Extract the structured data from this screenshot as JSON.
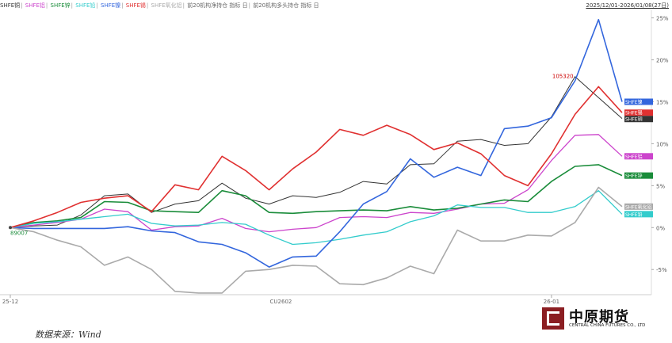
{
  "header": {
    "legend_items": [
      {
        "label": "SHFE铜",
        "color": "#333333"
      },
      {
        "label": "SHFE铝",
        "color": "#cc44cc"
      },
      {
        "label": "SHFE锌",
        "color": "#1a8c3a"
      },
      {
        "label": "SHFE铅",
        "color": "#33cccc"
      },
      {
        "label": "SHFE镍",
        "color": "#3366dd"
      },
      {
        "label": "SHFE锡",
        "color": "#e03030"
      },
      {
        "label": "SHFE氧化铝",
        "color": "#aaaaaa"
      },
      {
        "label": "前20机构净持仓 指标 日",
        "color": "#666666"
      },
      {
        "label": "前20机构多头持仓 指标 日",
        "color": "#666666"
      }
    ],
    "date_range": "2025/12/01-2026/01/08(27日)"
  },
  "footer": {
    "source": "数据来源：Wind",
    "logo_cn": "中原期货",
    "logo_en": "CENTRAL CHINA FUTURES CO., LTD"
  },
  "chart_data": {
    "type": "line",
    "ylim": [
      -8,
      26
    ],
    "y_ticks": [
      "25%",
      "20%",
      "15%",
      "10%",
      "5%",
      "0%",
      "-5%"
    ],
    "y_tick_values": [
      25,
      20,
      15,
      10,
      5,
      0,
      -5
    ],
    "x_labels": [
      "25-12",
      "CU2602",
      "26-01"
    ],
    "x_label_index": [
      0,
      11.5,
      23
    ],
    "annotations": {
      "max_label": "105320",
      "start_label": "89007",
      "start_label_color": "#1a8c3a",
      "max_label_color": "#cc0000"
    },
    "series": [
      {
        "name": "SHFE铜",
        "color": "#333333",
        "end_label": "SHFE铜",
        "width": 1,
        "values": [
          0,
          0.2,
          0.3,
          1.5,
          3.8,
          4,
          1.8,
          2.8,
          3.2,
          5.3,
          3.5,
          2.8,
          3.8,
          3.6,
          4.2,
          5.5,
          5.2,
          7.5,
          7.6,
          10.3,
          10.5,
          9.8,
          10,
          13.2,
          18,
          15.5,
          13
        ]
      },
      {
        "name": "SHFE铝",
        "color": "#cc44cc",
        "end_label": "SHFE铝",
        "width": 1.3,
        "values": [
          0,
          0.3,
          0.6,
          1,
          2.2,
          1.9,
          -0.3,
          0.1,
          0.2,
          1.1,
          -0.1,
          -0.5,
          -0.2,
          0,
          1.2,
          1.3,
          1.2,
          1.8,
          1.7,
          2.2,
          2.8,
          2.9,
          4.5,
          8,
          11,
          11.1,
          8.5
        ]
      },
      {
        "name": "SHFE锌",
        "color": "#1a8c3a",
        "end_label": "SHFE锌",
        "width": 1.6,
        "values": [
          0,
          0.6,
          0.8,
          1.2,
          3.1,
          3,
          2,
          1.9,
          1.8,
          4.4,
          3.8,
          1.8,
          1.7,
          1.9,
          2,
          2.1,
          2,
          2.5,
          2.1,
          2.3,
          2.8,
          3.3,
          3.1,
          5.5,
          7.3,
          7.5,
          6.2
        ]
      },
      {
        "name": "SHFE铅",
        "color": "#33cccc",
        "end_label": "SHFE铅",
        "width": 1.3,
        "values": [
          0,
          0.5,
          0.7,
          1,
          1.3,
          1.6,
          0.5,
          0.2,
          0.3,
          0.6,
          0.4,
          -0.9,
          -2,
          -1.8,
          -1.4,
          -0.9,
          -0.5,
          0.7,
          1.4,
          2.7,
          2.4,
          2.4,
          1.8,
          1.8,
          2.5,
          4.4,
          1.6
        ]
      },
      {
        "name": "SHFE镍",
        "color": "#3366dd",
        "end_label": "SHFE镍",
        "width": 1.6,
        "values": [
          0,
          -0.1,
          -0.1,
          -0.1,
          -0.1,
          0.1,
          -0.4,
          -0.6,
          -1.7,
          -2,
          -3,
          -4.7,
          -3.5,
          -3.4,
          -0.5,
          2.8,
          4.3,
          8.2,
          6,
          7.2,
          6.2,
          11.8,
          12.1,
          13.1,
          17.5,
          24.8,
          15
        ]
      },
      {
        "name": "SHFE锡",
        "color": "#e03030",
        "end_label": "SHFE锡",
        "width": 1.6,
        "values": [
          0,
          0.8,
          1.8,
          3,
          3.5,
          3.8,
          1.9,
          5.1,
          4.5,
          8.5,
          6.8,
          4.5,
          7,
          9,
          11.7,
          11,
          12.2,
          11.1,
          9.3,
          10.1,
          8.8,
          6.2,
          5,
          8.8,
          13.5,
          16.8,
          13.7
        ]
      },
      {
        "name": "SHFE氧化铝",
        "color": "#aaaaaa",
        "end_label": "SHFE氧化铝",
        "width": 1.6,
        "values": [
          0,
          -0.5,
          -1.5,
          -2.3,
          -4.5,
          -3.5,
          -5,
          -7.6,
          -7.8,
          -7.8,
          -5.2,
          -5,
          -4.5,
          -4.6,
          -6.7,
          -6.8,
          -6,
          -4.6,
          -5.5,
          -0.3,
          -1.6,
          -1.6,
          -0.9,
          -1,
          0.6,
          4.8,
          2.5
        ]
      }
    ]
  }
}
